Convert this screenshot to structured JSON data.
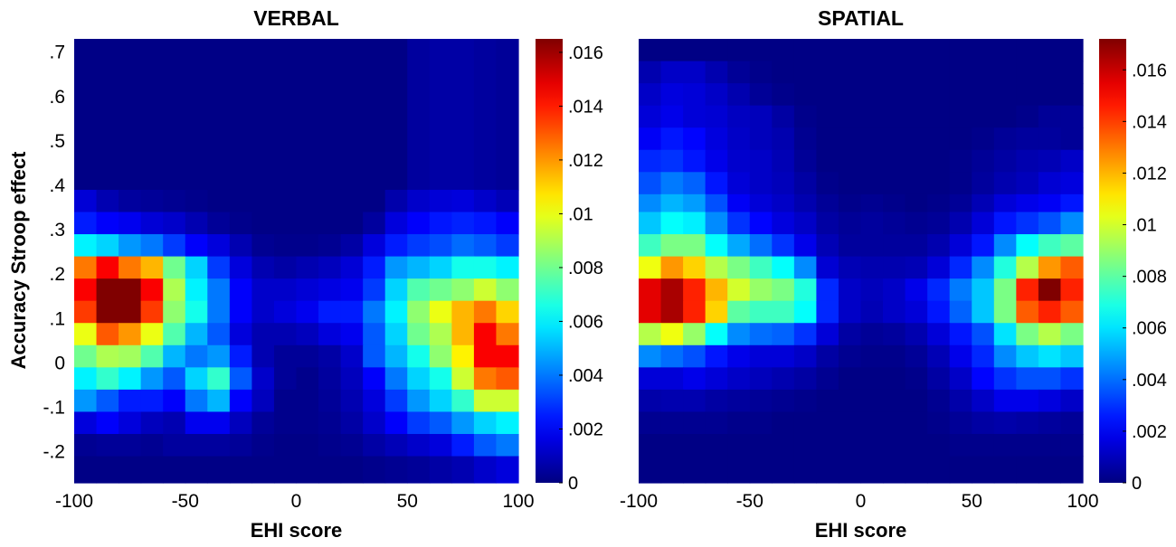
{
  "figure": {
    "ylabel": "Accuracy Stroop effect",
    "xlabel": "EHI score"
  },
  "chart_data": [
    {
      "type": "heatmap",
      "title": "VERBAL",
      "xlabel": "EHI score",
      "ylabel": "Accuracy Stroop effect",
      "xlim": [
        -100,
        100
      ],
      "ylim": [
        -0.27,
        0.73
      ],
      "xticks": [
        -100,
        -50,
        0,
        50,
        100
      ],
      "xtick_labels": [
        "-100",
        "-50",
        "0",
        "50",
        "100"
      ],
      "yticks": [
        0.7,
        0.6,
        0.5,
        0.4,
        0.3,
        0.2,
        0.1,
        0,
        -0.1,
        -0.2
      ],
      "ytick_labels": [
        ".7",
        ".6",
        ".5",
        ".4",
        ".3",
        ".2",
        ".1",
        "0",
        "-.1",
        "-.2"
      ],
      "colormap": "jet",
      "colorbar": {
        "min": 0,
        "max": 0.0165,
        "ticks": [
          0.016,
          0.014,
          0.012,
          0.01,
          0.008,
          0.006,
          0.004,
          0.002,
          0
        ],
        "tick_labels": [
          ".016",
          ".014",
          ".012",
          ".01",
          ".008",
          ".006",
          ".004",
          ".002",
          "0"
        ]
      },
      "grid": {
        "x_edges": [
          -100,
          -90,
          -80,
          -70,
          -60,
          -50,
          -40,
          -30,
          -20,
          -10,
          0,
          10,
          20,
          30,
          40,
          50,
          60,
          70,
          80,
          90,
          100
        ],
        "y_edges": [
          0.73,
          0.39,
          0.34,
          0.29,
          0.24,
          0.19,
          0.14,
          0.09,
          0.04,
          -0.01,
          -0.06,
          -0.11,
          -0.16,
          -0.21,
          -0.27
        ],
        "values": [
          [
            0.0001,
            0.0001,
            0.0001,
            0.0001,
            0.0001,
            0.0001,
            0.0001,
            0.0001,
            0.0001,
            0.0001,
            0.0001,
            0.0001,
            0.0001,
            0.0001,
            0.0001,
            0.0005,
            0.0006,
            0.0006,
            0.0005,
            0.0004
          ],
          [
            0.0014,
            0.0008,
            0.0005,
            0.0004,
            0.0003,
            0.0002,
            0.0001,
            0.0001,
            0.0001,
            0.0001,
            0.0001,
            0.0001,
            0.0001,
            0.0001,
            0.0007,
            0.0012,
            0.0014,
            0.0015,
            0.0012,
            0.0009
          ],
          [
            0.0025,
            0.002,
            0.0018,
            0.0014,
            0.0012,
            0.0008,
            0.0004,
            0.0002,
            0.0001,
            0.0001,
            0.0001,
            0.0001,
            0.0001,
            0.0005,
            0.0015,
            0.002,
            0.0024,
            0.0026,
            0.0024,
            0.002
          ],
          [
            0.006,
            0.0055,
            0.0045,
            0.004,
            0.003,
            0.002,
            0.0015,
            0.0008,
            0.0003,
            0.0002,
            0.0002,
            0.0003,
            0.0006,
            0.0015,
            0.0025,
            0.003,
            0.0033,
            0.0038,
            0.0035,
            0.003
          ],
          [
            0.0125,
            0.0145,
            0.0125,
            0.0115,
            0.008,
            0.0055,
            0.003,
            0.0015,
            0.0008,
            0.0006,
            0.0008,
            0.001,
            0.0014,
            0.0025,
            0.0045,
            0.005,
            0.0055,
            0.0065,
            0.0065,
            0.006
          ],
          [
            0.0145,
            0.0165,
            0.0165,
            0.0145,
            0.009,
            0.006,
            0.004,
            0.002,
            0.0012,
            0.0012,
            0.0014,
            0.0016,
            0.0018,
            0.003,
            0.0055,
            0.0075,
            0.008,
            0.0085,
            0.0095,
            0.0085
          ],
          [
            0.0135,
            0.0165,
            0.0165,
            0.0135,
            0.0085,
            0.0065,
            0.004,
            0.002,
            0.0012,
            0.0015,
            0.0018,
            0.0025,
            0.0025,
            0.004,
            0.006,
            0.0085,
            0.01,
            0.0115,
            0.0125,
            0.011
          ],
          [
            0.01,
            0.013,
            0.012,
            0.01,
            0.0075,
            0.005,
            0.0035,
            0.0015,
            0.0008,
            0.0008,
            0.001,
            0.0015,
            0.0018,
            0.0035,
            0.0055,
            0.008,
            0.009,
            0.0115,
            0.0145,
            0.0125
          ],
          [
            0.008,
            0.009,
            0.0088,
            0.0075,
            0.005,
            0.004,
            0.0045,
            0.0025,
            0.0008,
            0.0004,
            0.0004,
            0.0006,
            0.0012,
            0.0035,
            0.005,
            0.0065,
            0.0085,
            0.0105,
            0.0145,
            0.0145
          ],
          [
            0.006,
            0.007,
            0.006,
            0.0045,
            0.0035,
            0.0055,
            0.007,
            0.0035,
            0.0012,
            0.0004,
            0.0002,
            0.0005,
            0.001,
            0.002,
            0.004,
            0.0055,
            0.0065,
            0.0095,
            0.0125,
            0.013
          ],
          [
            0.0045,
            0.0035,
            0.0025,
            0.0025,
            0.002,
            0.004,
            0.005,
            0.002,
            0.001,
            0.0002,
            0.0002,
            0.0004,
            0.0008,
            0.0015,
            0.003,
            0.0045,
            0.0055,
            0.007,
            0.0095,
            0.0095
          ],
          [
            0.0015,
            0.002,
            0.0015,
            0.001,
            0.0008,
            0.0018,
            0.0018,
            0.001,
            0.0004,
            0.0002,
            0.0002,
            0.0003,
            0.0006,
            0.0012,
            0.002,
            0.003,
            0.0035,
            0.0045,
            0.0055,
            0.006
          ],
          [
            0.0003,
            0.0004,
            0.0004,
            0.0003,
            0.0005,
            0.0005,
            0.0005,
            0.0004,
            0.0002,
            0.0001,
            0.0001,
            0.0002,
            0.0003,
            0.0006,
            0.0009,
            0.0012,
            0.0015,
            0.0025,
            0.0035,
            0.004
          ],
          [
            0.0001,
            0.0001,
            0.0001,
            0.0001,
            0.0001,
            0.0001,
            0.0001,
            0.0001,
            0.0001,
            0.0001,
            0.0001,
            0.0001,
            0.0001,
            0.0002,
            0.0003,
            0.0004,
            0.0006,
            0.0008,
            0.0012,
            0.0015
          ]
        ]
      }
    },
    {
      "type": "heatmap",
      "title": "SPATIAL",
      "xlabel": "EHI score",
      "ylabel": "",
      "xlim": [
        -100,
        100
      ],
      "ylim": [
        -0.27,
        0.73
      ],
      "xticks": [
        -100,
        -50,
        0,
        50,
        100
      ],
      "xtick_labels": [
        "-100",
        "-50",
        "0",
        "50",
        "100"
      ],
      "colormap": "jet",
      "colorbar": {
        "min": 0,
        "max": 0.0172,
        "ticks": [
          0.016,
          0.014,
          0.012,
          0.01,
          0.008,
          0.006,
          0.004,
          0.002,
          0
        ],
        "tick_labels": [
          ".016",
          ".014",
          ".012",
          ".01",
          ".008",
          ".006",
          ".004",
          ".002",
          "0"
        ]
      },
      "grid": {
        "x_edges": [
          -100,
          -90,
          -80,
          -70,
          -60,
          -50,
          -40,
          -30,
          -20,
          -10,
          0,
          10,
          20,
          30,
          40,
          50,
          60,
          70,
          80,
          90,
          100
        ],
        "y_edges": [
          0.73,
          0.68,
          0.63,
          0.58,
          0.53,
          0.48,
          0.43,
          0.38,
          0.34,
          0.29,
          0.24,
          0.19,
          0.14,
          0.09,
          0.04,
          -0.01,
          -0.06,
          -0.11,
          -0.16,
          -0.21,
          -0.27
        ],
        "values": [
          [
            0.0001,
            0.0001,
            0.0001,
            0.0001,
            0.0001,
            0.0001,
            0.0001,
            0.0001,
            0.0001,
            0.0001,
            0.0001,
            0.0001,
            0.0001,
            0.0001,
            0.0001,
            0.0001,
            0.0001,
            0.0001,
            0.0001,
            0.0001
          ],
          [
            0.0008,
            0.0012,
            0.0012,
            0.0008,
            0.0004,
            0.0002,
            0.0001,
            0.0001,
            0.0001,
            0.0001,
            0.0001,
            0.0001,
            0.0001,
            0.0001,
            0.0001,
            0.0001,
            0.0001,
            0.0001,
            0.0001,
            0.0001
          ],
          [
            0.0012,
            0.0016,
            0.0015,
            0.0012,
            0.0008,
            0.0004,
            0.0002,
            0.0001,
            0.0001,
            0.0001,
            0.0001,
            0.0001,
            0.0001,
            0.0001,
            0.0001,
            0.0001,
            0.0001,
            0.0001,
            0.0001,
            0.0001
          ],
          [
            0.0015,
            0.0018,
            0.0015,
            0.0014,
            0.0011,
            0.001,
            0.0006,
            0.0002,
            0.0001,
            0.0001,
            0.0001,
            0.0001,
            0.0001,
            0.0001,
            0.0001,
            0.0001,
            0.0001,
            0.0002,
            0.0004,
            0.0004
          ],
          [
            0.002,
            0.0025,
            0.0022,
            0.0016,
            0.0012,
            0.001,
            0.0008,
            0.0003,
            0.0001,
            0.0001,
            0.0001,
            0.0001,
            0.0001,
            0.0001,
            0.0001,
            0.0002,
            0.0004,
            0.0005,
            0.0005,
            0.0004
          ],
          [
            0.0028,
            0.003,
            0.0025,
            0.0018,
            0.0013,
            0.0012,
            0.0009,
            0.0004,
            0.0001,
            0.0001,
            0.0001,
            0.0001,
            0.0001,
            0.0001,
            0.0002,
            0.0004,
            0.0006,
            0.0008,
            0.0009,
            0.0012
          ],
          [
            0.0035,
            0.0042,
            0.0038,
            0.0025,
            0.0015,
            0.0012,
            0.001,
            0.0006,
            0.0002,
            0.0001,
            0.0001,
            0.0001,
            0.0001,
            0.0001,
            0.0002,
            0.0005,
            0.0008,
            0.001,
            0.0014,
            0.0016
          ],
          [
            0.0045,
            0.0052,
            0.0048,
            0.0035,
            0.002,
            0.0015,
            0.0012,
            0.0008,
            0.0004,
            0.0002,
            0.0003,
            0.0002,
            0.0001,
            0.0002,
            0.0004,
            0.0009,
            0.0015,
            0.0018,
            0.002,
            0.0025
          ],
          [
            0.0055,
            0.0065,
            0.0062,
            0.0045,
            0.003,
            0.0022,
            0.0016,
            0.0012,
            0.0006,
            0.0004,
            0.0005,
            0.0004,
            0.0003,
            0.0004,
            0.0008,
            0.0015,
            0.0025,
            0.003,
            0.0035,
            0.0045
          ],
          [
            0.0075,
            0.0085,
            0.0085,
            0.0065,
            0.005,
            0.004,
            0.003,
            0.0018,
            0.0009,
            0.0005,
            0.0005,
            0.0005,
            0.0005,
            0.0008,
            0.0015,
            0.0025,
            0.0045,
            0.0065,
            0.0075,
            0.008
          ],
          [
            0.0105,
            0.0125,
            0.0115,
            0.0095,
            0.0085,
            0.0075,
            0.0065,
            0.0045,
            0.0014,
            0.0009,
            0.0008,
            0.0008,
            0.0009,
            0.0015,
            0.0028,
            0.0045,
            0.007,
            0.0095,
            0.0125,
            0.0135
          ],
          [
            0.0155,
            0.0165,
            0.0145,
            0.012,
            0.01,
            0.009,
            0.0085,
            0.007,
            0.0028,
            0.0012,
            0.001,
            0.0012,
            0.0018,
            0.0028,
            0.0042,
            0.0055,
            0.0085,
            0.0145,
            0.0172,
            0.0145
          ],
          [
            0.0155,
            0.0165,
            0.0145,
            0.0115,
            0.008,
            0.0075,
            0.0075,
            0.0065,
            0.0028,
            0.0012,
            0.0009,
            0.0012,
            0.0015,
            0.0025,
            0.0038,
            0.0055,
            0.0085,
            0.0135,
            0.0145,
            0.0135
          ],
          [
            0.0095,
            0.0105,
            0.009,
            0.0065,
            0.0045,
            0.004,
            0.0038,
            0.003,
            0.0015,
            0.0006,
            0.0004,
            0.0005,
            0.0008,
            0.0015,
            0.0025,
            0.0035,
            0.006,
            0.0085,
            0.0095,
            0.0085
          ],
          [
            0.0045,
            0.004,
            0.0035,
            0.0025,
            0.0018,
            0.0015,
            0.0015,
            0.0012,
            0.0006,
            0.0003,
            0.0002,
            0.0002,
            0.0004,
            0.0009,
            0.0018,
            0.0028,
            0.0045,
            0.0055,
            0.006,
            0.0055
          ],
          [
            0.0015,
            0.0015,
            0.0018,
            0.0015,
            0.0012,
            0.001,
            0.0008,
            0.0006,
            0.0003,
            0.0001,
            0.0001,
            0.0001,
            0.0002,
            0.0006,
            0.0012,
            0.0022,
            0.003,
            0.0035,
            0.0035,
            0.003
          ],
          [
            0.0007,
            0.0008,
            0.0008,
            0.0006,
            0.0005,
            0.0004,
            0.0003,
            0.0002,
            0.0001,
            0.0001,
            0.0001,
            0.0001,
            0.0001,
            0.0003,
            0.0007,
            0.0012,
            0.0018,
            0.0018,
            0.0016,
            0.0012
          ],
          [
            0.0003,
            0.0003,
            0.0003,
            0.0003,
            0.0002,
            0.0002,
            0.0001,
            0.0001,
            0.0001,
            0.0001,
            0.0001,
            0.0001,
            0.0001,
            0.0002,
            0.0004,
            0.0006,
            0.0007,
            0.0006,
            0.0005,
            0.0004
          ],
          [
            0.0001,
            0.0001,
            0.0001,
            0.0001,
            0.0001,
            0.0001,
            0.0001,
            0.0001,
            0.0001,
            0.0001,
            0.0001,
            0.0001,
            0.0001,
            0.0001,
            0.0002,
            0.0002,
            0.0002,
            0.0002,
            0.0002,
            0.0002
          ],
          [
            0.0001,
            0.0001,
            0.0001,
            0.0001,
            0.0001,
            0.0001,
            0.0001,
            0.0001,
            0.0001,
            0.0001,
            0.0001,
            0.0001,
            0.0001,
            0.0001,
            0.0001,
            0.0001,
            0.0001,
            0.0001,
            0.0001,
            0.0001
          ]
        ]
      }
    }
  ]
}
